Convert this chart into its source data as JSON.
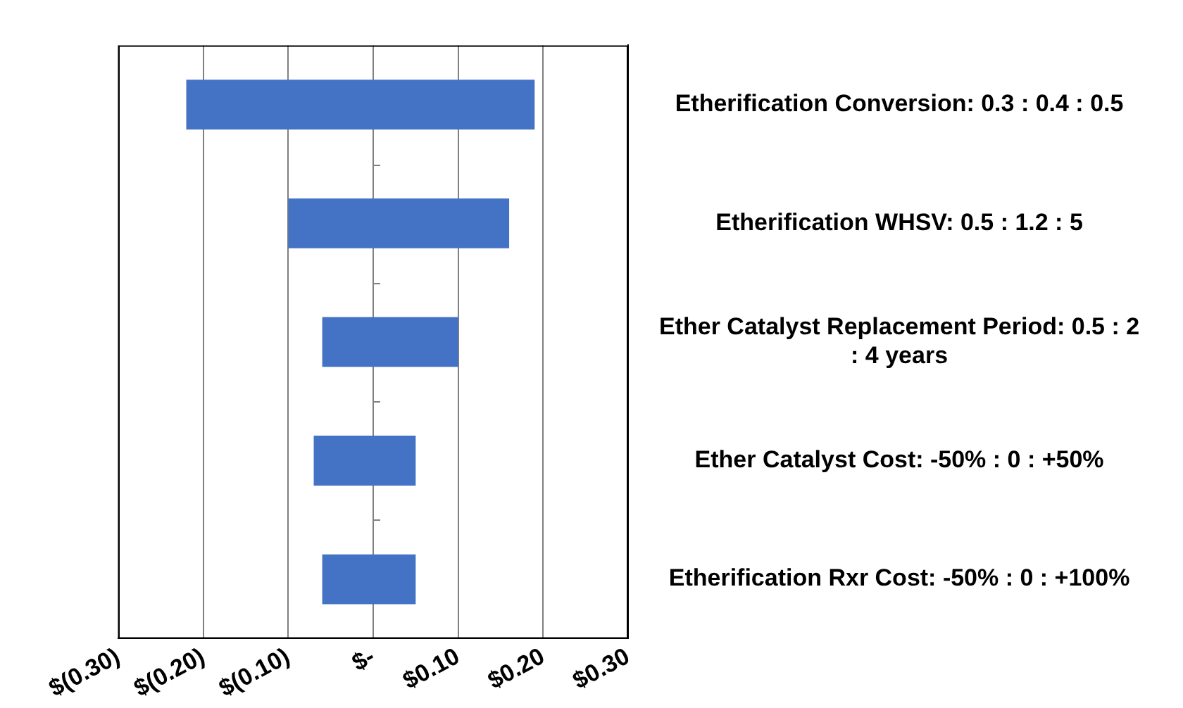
{
  "chart_data": {
    "type": "bar",
    "orientation": "horizontal",
    "categories": [
      "Etherification Conversion: 0.3 : 0.4 : 0.5",
      "Etherification WHSV: 0.5 : 1.2 : 5",
      "Ether Catalyst Replacement Period: 0.5 : 2 : 4 years",
      "Ether Catalyst Cost: -50% : 0 : +50%",
      "Etherification Rxr Cost: -50% : 0 : +100%"
    ],
    "base": [
      -0.22,
      -0.1,
      -0.06,
      -0.07,
      -0.06
    ],
    "values": [
      0.41,
      0.26,
      0.16,
      0.12,
      0.11
    ],
    "color": "#4472c4",
    "xlim": [
      -0.3,
      0.3
    ],
    "xticks": [
      {
        "value": -0.3,
        "label": "$(0.30)"
      },
      {
        "value": -0.2,
        "label": "$(0.20)"
      },
      {
        "value": -0.1,
        "label": "$(0.10)"
      },
      {
        "value": 0,
        "label": "$-"
      },
      {
        "value": 0.1,
        "label": "$0.10"
      },
      {
        "value": 0.2,
        "label": "$0.20"
      },
      {
        "value": 0.3,
        "label": "$0.30"
      }
    ],
    "grid": "x",
    "legend": false
  }
}
